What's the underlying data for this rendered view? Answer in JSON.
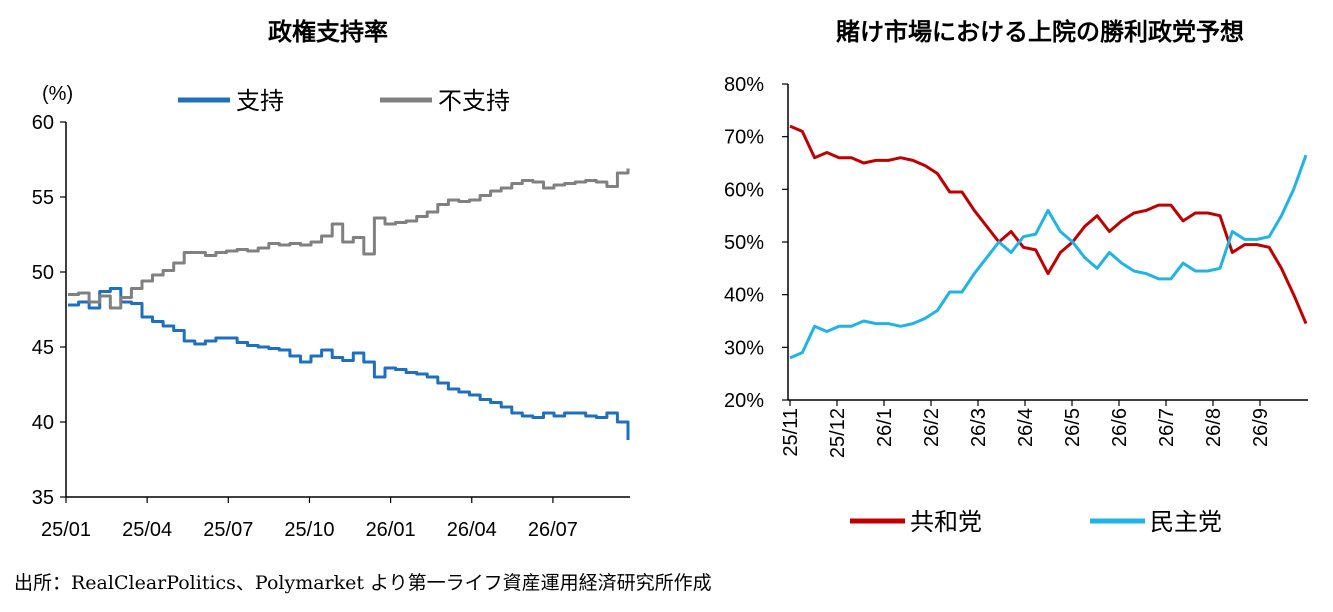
{
  "source_note": "出所：RealClearPolitics、Polymarket より第一ライフ資産運用経済研究所作成",
  "chart_data": [
    {
      "type": "line",
      "title": "政権支持率",
      "unit_label": "(%)",
      "ylim": [
        35,
        60
      ],
      "yticks": [
        "35",
        "40",
        "45",
        "50",
        "55",
        "60"
      ],
      "xticks": [
        "25/01",
        "25/04",
        "25/07",
        "25/10",
        "26/01",
        "26/04",
        "26/07"
      ],
      "legend_position": "top",
      "series": [
        {
          "name": "支持",
          "color": "#1f6fbf",
          "values": [
            [
              "25/01",
              47.8
            ],
            [
              "25/01",
              48.0
            ],
            [
              "25/01",
              47.6
            ],
            [
              "25/02",
              48.7
            ],
            [
              "25/02",
              48.9
            ],
            [
              "25/02",
              48.0
            ],
            [
              "25/03",
              47.9
            ],
            [
              "25/03",
              47.0
            ],
            [
              "25/04",
              46.7
            ],
            [
              "25/04",
              46.4
            ],
            [
              "25/04",
              46.1
            ],
            [
              "25/05",
              45.4
            ],
            [
              "25/05",
              45.2
            ],
            [
              "25/05",
              45.4
            ],
            [
              "25/06",
              45.6
            ],
            [
              "25/06",
              45.6
            ],
            [
              "25/06",
              45.3
            ],
            [
              "25/07",
              45.1
            ],
            [
              "25/07",
              45.0
            ],
            [
              "25/07",
              44.9
            ],
            [
              "25/08",
              44.8
            ],
            [
              "25/08",
              44.4
            ],
            [
              "25/09",
              44.0
            ],
            [
              "25/09",
              44.4
            ],
            [
              "25/09",
              44.8
            ],
            [
              "25/10",
              44.3
            ],
            [
              "25/10",
              44.1
            ],
            [
              "25/10",
              44.6
            ],
            [
              "25/11",
              44.0
            ],
            [
              "25/11",
              43.0
            ],
            [
              "25/11",
              43.6
            ],
            [
              "25/12",
              43.5
            ],
            [
              "25/12",
              43.3
            ],
            [
              "26/01",
              43.2
            ],
            [
              "26/01",
              43.0
            ],
            [
              "26/01",
              42.6
            ],
            [
              "26/02",
              42.2
            ],
            [
              "26/02",
              42.0
            ],
            [
              "26/03",
              41.8
            ],
            [
              "26/03",
              41.5
            ],
            [
              "26/04",
              41.3
            ],
            [
              "26/04",
              41.0
            ],
            [
              "26/05",
              40.6
            ],
            [
              "26/05",
              40.4
            ],
            [
              "26/05",
              40.3
            ],
            [
              "26/06",
              40.6
            ],
            [
              "26/06",
              40.4
            ],
            [
              "26/07",
              40.6
            ],
            [
              "26/07",
              40.6
            ],
            [
              "26/07",
              40.4
            ],
            [
              "26/08",
              40.3
            ],
            [
              "26/08",
              40.6
            ],
            [
              "26/08",
              40.0
            ],
            [
              "26/09",
              38.8
            ]
          ]
        },
        {
          "name": "不支持",
          "color": "#808080",
          "values": [
            [
              "25/01",
              48.5
            ],
            [
              "25/01",
              48.6
            ],
            [
              "25/01",
              48.0
            ],
            [
              "25/02",
              48.4
            ],
            [
              "25/02",
              47.6
            ],
            [
              "25/02",
              48.3
            ],
            [
              "25/03",
              48.9
            ],
            [
              "25/03",
              49.4
            ],
            [
              "25/04",
              49.8
            ],
            [
              "25/04",
              50.1
            ],
            [
              "25/04",
              50.6
            ],
            [
              "25/05",
              51.3
            ],
            [
              "25/05",
              51.3
            ],
            [
              "25/05",
              51.1
            ],
            [
              "25/06",
              51.3
            ],
            [
              "25/06",
              51.4
            ],
            [
              "25/06",
              51.5
            ],
            [
              "25/07",
              51.4
            ],
            [
              "25/07",
              51.6
            ],
            [
              "25/07",
              51.9
            ],
            [
              "25/08",
              51.8
            ],
            [
              "25/08",
              51.9
            ],
            [
              "25/09",
              51.8
            ],
            [
              "25/09",
              52.0
            ],
            [
              "25/09",
              52.4
            ],
            [
              "25/10",
              53.2
            ],
            [
              "25/10",
              52.0
            ],
            [
              "25/10",
              52.3
            ],
            [
              "25/11",
              51.2
            ],
            [
              "25/11",
              53.6
            ],
            [
              "25/11",
              53.2
            ],
            [
              "25/12",
              53.3
            ],
            [
              "25/12",
              53.4
            ],
            [
              "26/01",
              53.7
            ],
            [
              "26/01",
              54.0
            ],
            [
              "26/01",
              54.5
            ],
            [
              "26/02",
              54.8
            ],
            [
              "26/02",
              54.7
            ],
            [
              "26/03",
              54.8
            ],
            [
              "26/03",
              55.1
            ],
            [
              "26/04",
              55.4
            ],
            [
              "26/04",
              55.6
            ],
            [
              "26/05",
              55.9
            ],
            [
              "26/05",
              56.1
            ],
            [
              "26/05",
              56.0
            ],
            [
              "26/06",
              55.6
            ],
            [
              "26/06",
              55.8
            ],
            [
              "26/07",
              55.9
            ],
            [
              "26/07",
              56.0
            ],
            [
              "26/07",
              56.1
            ],
            [
              "26/08",
              56.0
            ],
            [
              "26/08",
              55.7
            ],
            [
              "26/08",
              56.6
            ],
            [
              "26/09",
              56.9
            ]
          ]
        }
      ]
    },
    {
      "type": "line",
      "title": "賭け市場における上院の勝利政党予想",
      "ylim": [
        20,
        80
      ],
      "yticks": [
        "20%",
        "30%",
        "40%",
        "50%",
        "60%",
        "70%",
        "80%"
      ],
      "xticks": [
        "25/11",
        "25/12",
        "26/1",
        "26/2",
        "26/3",
        "26/4",
        "26/5",
        "26/6",
        "26/7",
        "26/8",
        "26/9"
      ],
      "legend_position": "bottom",
      "series": [
        {
          "name": "共和党",
          "color": "#c00000",
          "values": [
            [
              "25/11",
              72
            ],
            [
              "25/11",
              71
            ],
            [
              "25/11",
              66
            ],
            [
              "25/11",
              67
            ],
            [
              "25/11",
              66
            ],
            [
              "25/12",
              66
            ],
            [
              "25/12",
              65
            ],
            [
              "25/12",
              65.5
            ],
            [
              "26/1",
              65.5
            ],
            [
              "26/1",
              66
            ],
            [
              "26/1",
              65.5
            ],
            [
              "26/2",
              64.5
            ],
            [
              "26/2",
              63
            ],
            [
              "26/2",
              59.5
            ],
            [
              "26/3",
              59.5
            ],
            [
              "26/3",
              56
            ],
            [
              "26/3",
              53
            ],
            [
              "26/3",
              50
            ],
            [
              "26/4",
              52
            ],
            [
              "26/4",
              49
            ],
            [
              "26/4",
              48.5
            ],
            [
              "26/4",
              44
            ],
            [
              "26/5",
              48
            ],
            [
              "26/5",
              50
            ],
            [
              "26/5",
              53
            ],
            [
              "26/5",
              55
            ],
            [
              "26/5",
              52
            ],
            [
              "26/6",
              54
            ],
            [
              "26/6",
              55.5
            ],
            [
              "26/6",
              56
            ],
            [
              "26/7",
              57
            ],
            [
              "26/7",
              57
            ],
            [
              "26/7",
              54
            ],
            [
              "26/7",
              55.5
            ],
            [
              "26/8",
              55.5
            ],
            [
              "26/8",
              55
            ],
            [
              "26/8",
              48
            ],
            [
              "26/8",
              49.5
            ],
            [
              "26/9",
              49.5
            ],
            [
              "26/9",
              49
            ],
            [
              "26/9",
              45
            ],
            [
              "26/9",
              40
            ],
            [
              "26/9",
              34.5
            ]
          ]
        },
        {
          "name": "民主党",
          "color": "#1fb3e8",
          "values": [
            [
              "25/11",
              28
            ],
            [
              "25/11",
              29
            ],
            [
              "25/11",
              34
            ],
            [
              "25/11",
              33
            ],
            [
              "25/11",
              34
            ],
            [
              "25/12",
              34
            ],
            [
              "25/12",
              35
            ],
            [
              "25/12",
              34.5
            ],
            [
              "26/1",
              34.5
            ],
            [
              "26/1",
              34
            ],
            [
              "26/1",
              34.5
            ],
            [
              "26/2",
              35.5
            ],
            [
              "26/2",
              37
            ],
            [
              "26/2",
              40.5
            ],
            [
              "26/3",
              40.5
            ],
            [
              "26/3",
              44
            ],
            [
              "26/3",
              47
            ],
            [
              "26/3",
              50
            ],
            [
              "26/4",
              48
            ],
            [
              "26/4",
              51
            ],
            [
              "26/4",
              51.5
            ],
            [
              "26/4",
              56
            ],
            [
              "26/5",
              52
            ],
            [
              "26/5",
              50
            ],
            [
              "26/5",
              47
            ],
            [
              "26/5",
              45
            ],
            [
              "26/5",
              48
            ],
            [
              "26/6",
              46
            ],
            [
              "26/6",
              44.5
            ],
            [
              "26/6",
              44
            ],
            [
              "26/7",
              43
            ],
            [
              "26/7",
              43
            ],
            [
              "26/7",
              46
            ],
            [
              "26/7",
              44.5
            ],
            [
              "26/8",
              44.5
            ],
            [
              "26/8",
              45
            ],
            [
              "26/8",
              52
            ],
            [
              "26/8",
              50.5
            ],
            [
              "26/9",
              50.5
            ],
            [
              "26/9",
              51
            ],
            [
              "26/9",
              55
            ],
            [
              "26/9",
              60
            ],
            [
              "26/9",
              66.5
            ]
          ]
        }
      ]
    }
  ]
}
